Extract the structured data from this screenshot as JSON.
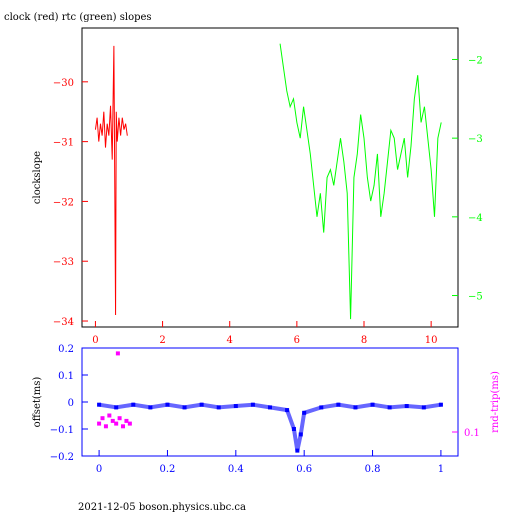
{
  "chart_data": [
    {
      "type": "line",
      "title": "clock (red) rtc (green) slopes",
      "ylabel": "clockslope",
      "xlim": [
        -0.4,
        10.8
      ],
      "ylim": [
        -34.1,
        -29.1
      ],
      "ylim_right": [
        -5.4,
        -1.6
      ],
      "x_ticks": [
        0,
        2,
        4,
        6,
        8,
        10
      ],
      "y_ticks": [
        -30,
        -31,
        -32,
        -33,
        -34
      ],
      "y_ticks_right": [
        -2,
        -3,
        -4,
        -5
      ],
      "colors": {
        "clock": "#ff0000",
        "rtc": "#00ff00",
        "frame": "#000000"
      },
      "series": [
        {
          "x": [
            0,
            0.05,
            0.1,
            0.15,
            0.2,
            0.25,
            0.3,
            0.35,
            0.4,
            0.45,
            0.5,
            0.55,
            0.6,
            0.62,
            0.65,
            0.7,
            0.75,
            0.8,
            0.85,
            0.9,
            0.95
          ],
          "y": [
            -30.8,
            -30.6,
            -31.0,
            -30.7,
            -30.9,
            -30.5,
            -31.1,
            -30.7,
            -30.9,
            -30.4,
            -31.3,
            -29.4,
            -33.9,
            -30.5,
            -31.0,
            -30.6,
            -30.9,
            -30.6,
            -30.8,
            -30.7,
            -30.9
          ],
          "axis": "left"
        },
        {
          "x": [
            5.5,
            5.6,
            5.7,
            5.8,
            5.9,
            6.0,
            6.1,
            6.2,
            6.3,
            6.4,
            6.5,
            6.6,
            6.7,
            6.8,
            6.9,
            7.0,
            7.1,
            7.2,
            7.3,
            7.4,
            7.5,
            7.6,
            7.7,
            7.8,
            7.9,
            8.0,
            8.1,
            8.2,
            8.3,
            8.4,
            8.5,
            8.6,
            8.7,
            8.8,
            8.9,
            9.0,
            9.1,
            9.2,
            9.3,
            9.4,
            9.5,
            9.6,
            9.7,
            9.8,
            9.9,
            10.0,
            10.1,
            10.2,
            10.3
          ],
          "y": [
            -1.8,
            -2.1,
            -2.4,
            -2.6,
            -2.5,
            -2.8,
            -3.0,
            -2.6,
            -2.9,
            -3.2,
            -3.6,
            -4.0,
            -3.7,
            -4.2,
            -3.5,
            -3.4,
            -3.6,
            -3.3,
            -3.0,
            -3.3,
            -3.7,
            -5.3,
            -3.5,
            -3.2,
            -2.7,
            -3.0,
            -3.5,
            -3.8,
            -3.6,
            -3.2,
            -4.0,
            -3.7,
            -3.3,
            -2.9,
            -3.0,
            -3.4,
            -3.2,
            -3.0,
            -3.5,
            -3.1,
            -2.5,
            -2.2,
            -2.8,
            -2.6,
            -3.0,
            -3.4,
            -4.0,
            -3.0,
            -2.8
          ],
          "axis": "right"
        }
      ]
    },
    {
      "type": "scatter",
      "ylabel": "offset(ms)",
      "ylabel_right": "rnd-trip(ms)",
      "xlim": [
        -0.05,
        1.05
      ],
      "ylim": [
        -0.2,
        0.2
      ],
      "x_ticks": [
        "0",
        "0.2",
        "0.4",
        "0.6",
        "0.8",
        "1"
      ],
      "y_ticks": [
        "0.2",
        "0.1",
        "0",
        "-0.1",
        "-0.2"
      ],
      "right_tick": "0.1",
      "colors": {
        "offset": "#0000ff",
        "rndtrip": "#ff00ff"
      },
      "series": [
        {
          "x": [
            0.0,
            0.05,
            0.1,
            0.15,
            0.2,
            0.25,
            0.3,
            0.35,
            0.4,
            0.45,
            0.5,
            0.55,
            0.57,
            0.58,
            0.59,
            0.6,
            0.65,
            0.7,
            0.75,
            0.8,
            0.85,
            0.9,
            0.95,
            1.0
          ],
          "y": [
            -0.01,
            -0.02,
            -0.01,
            -0.02,
            -0.01,
            -0.02,
            -0.01,
            -0.02,
            -0.015,
            -0.01,
            -0.02,
            -0.03,
            -0.1,
            -0.18,
            -0.12,
            -0.04,
            -0.02,
            -0.01,
            -0.02,
            -0.01,
            -0.02,
            -0.015,
            -0.02,
            -0.01
          ]
        },
        {
          "x": [
            0.0,
            0.01,
            0.02,
            0.03,
            0.04,
            0.05,
            0.055,
            0.06,
            0.07,
            0.08,
            0.09
          ],
          "y": [
            -0.08,
            -0.06,
            -0.09,
            -0.05,
            -0.07,
            -0.08,
            0.18,
            -0.06,
            -0.09,
            -0.07,
            -0.08
          ]
        }
      ]
    }
  ],
  "footer": "2021-12-05  boson.physics.ubc.ca"
}
